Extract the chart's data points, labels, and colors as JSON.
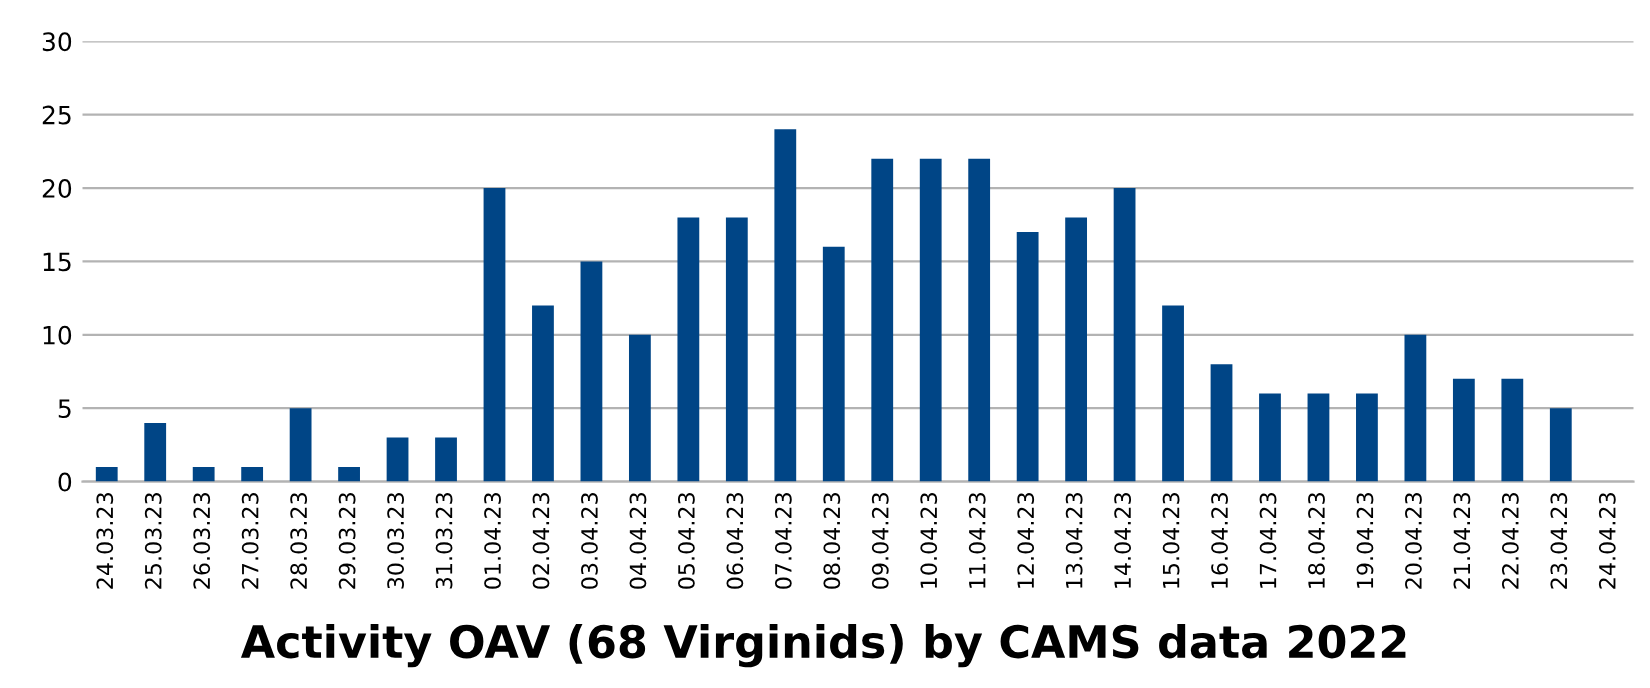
{
  "chart_data": {
    "type": "bar",
    "title": "Activity OAV (68 Virginids) by CAMS data 2022",
    "categories": [
      "24.03.23",
      "25.03.23",
      "26.03.23",
      "27.03.23",
      "28.03.23",
      "29.03.23",
      "30.03.23",
      "31.03.23",
      "01.04.23",
      "02.04.23",
      "03.04.23",
      "04.04.23",
      "05.04.23",
      "06.04.23",
      "07.04.23",
      "08.04.23",
      "09.04.23",
      "10.04.23",
      "11.04.23",
      "12.04.23",
      "13.04.23",
      "14.04.23",
      "15.04.23",
      "16.04.23",
      "17.04.23",
      "18.04.23",
      "19.04.23",
      "20.04.23",
      "21.04.23",
      "22.04.23",
      "23.04.23",
      "24.04.23"
    ],
    "values": [
      1,
      4,
      1,
      1,
      5,
      1,
      3,
      3,
      20,
      12,
      15,
      10,
      18,
      18,
      24,
      16,
      22,
      22,
      22,
      17,
      18,
      20,
      12,
      8,
      6,
      6,
      6,
      10,
      7,
      7,
      5,
      0
    ],
    "color": "#004586",
    "ylim": [
      0,
      30
    ],
    "yticks": [
      0,
      5,
      10,
      15,
      20,
      25,
      30
    ],
    "grid": "y",
    "legend": false
  }
}
